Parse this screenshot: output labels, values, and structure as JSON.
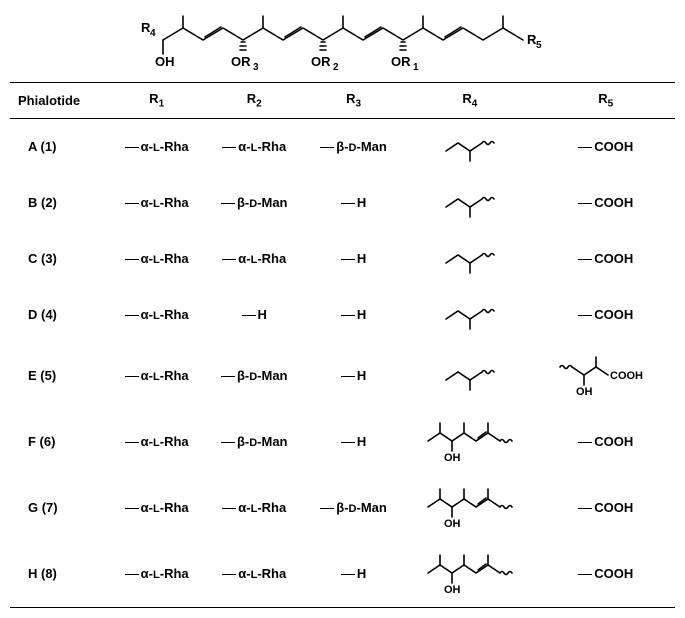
{
  "structure_labels": {
    "R1": "OR₁",
    "R2": "OR₂",
    "R3": "OR₃",
    "R4": "R₄",
    "R5": "R₅",
    "OH": "OH"
  },
  "columns": [
    "Phialotide",
    "R₁",
    "R₂",
    "R₃",
    "R₄",
    "R₅"
  ],
  "rows": [
    {
      "name": "A (1)",
      "r1": "—α-L-Rha",
      "r2": "—α-L-Rha",
      "r3": "—β-D-Man",
      "r4_svg": "frag_a",
      "r5": "—COOH"
    },
    {
      "name": "B (2)",
      "r1": "—α-L-Rha",
      "r2": "—β-D-Man",
      "r3": "—H",
      "r4_svg": "frag_a",
      "r5": "—COOH"
    },
    {
      "name": "C (3)",
      "r1": "—α-L-Rha",
      "r2": "—α-L-Rha",
      "r3": "—H",
      "r4_svg": "frag_a",
      "r5": "—COOH"
    },
    {
      "name": "D (4)",
      "r1": "—α-L-Rha",
      "r2": "—H",
      "r3": "—H",
      "r4_svg": "frag_a",
      "r5": "—COOH"
    },
    {
      "name": "E (5)",
      "r1": "—α-L-Rha",
      "r2": "—β-D-Man",
      "r3": "—H",
      "r4_svg": "frag_a",
      "r5_svg": "frag_e5"
    },
    {
      "name": "F (6)",
      "r1": "—α-L-Rha",
      "r2": "—β-D-Man",
      "r3": "—H",
      "r4_svg": "frag_f",
      "r5": "—COOH"
    },
    {
      "name": "G (7)",
      "r1": "—α-L-Rha",
      "r2": "—α-L-Rha",
      "r3": "—β-D-Man",
      "r4_svg": "frag_f",
      "r5": "—COOH"
    },
    {
      "name": "H (8)",
      "r1": "—α-L-Rha",
      "r2": "—α-L-Rha",
      "r3": "—H",
      "r4_svg": "frag_f",
      "r5": "—COOH"
    }
  ],
  "colors": {
    "line": "#000000",
    "bg": "#ffffff"
  },
  "stroke_width": 1.6
}
